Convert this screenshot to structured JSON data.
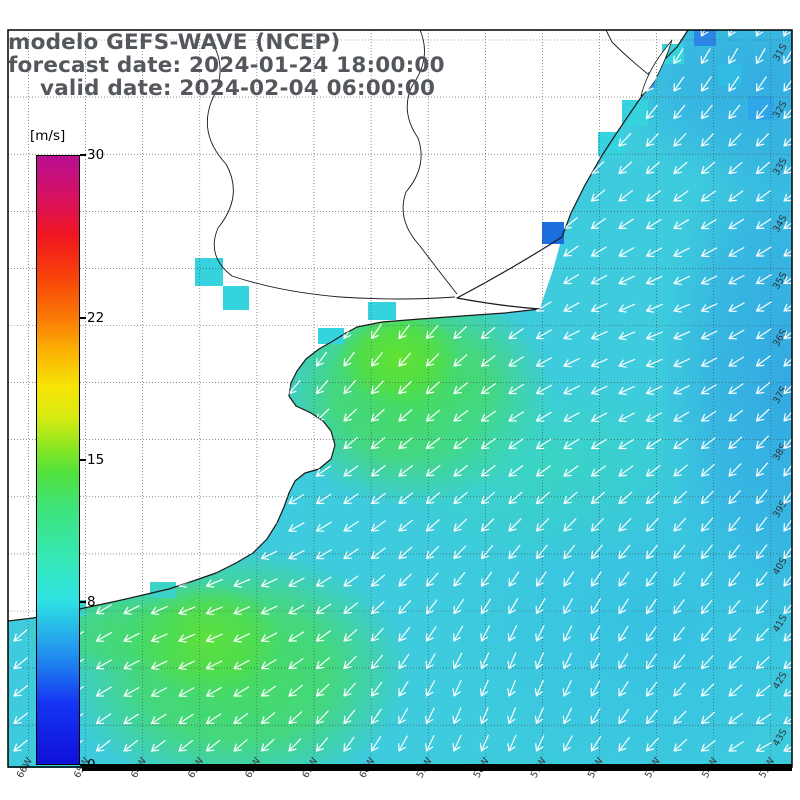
{
  "header": {
    "model_line": "modelo GEFS-WAVE (NCEP)",
    "forecast_line": "forecast date: 2024-01-24 18:00:00",
    "valid_line": "valid date: 2024-02-04 06:00:00",
    "text_color": "#54585c"
  },
  "colorbar": {
    "unit_label": "[m/s]",
    "min": 0,
    "max": 30,
    "tick_values": [
      30,
      22,
      15,
      8,
      0
    ],
    "gradient_stops": [
      [
        0.0,
        "#1010d8"
      ],
      [
        0.1,
        "#1535f2"
      ],
      [
        0.16,
        "#1e7bf0"
      ],
      [
        0.22,
        "#27b6ea"
      ],
      [
        0.27,
        "#2fe3e3"
      ],
      [
        0.34,
        "#35e8b4"
      ],
      [
        0.42,
        "#3ee37c"
      ],
      [
        0.48,
        "#52e23c"
      ],
      [
        0.52,
        "#8ae621"
      ],
      [
        0.57,
        "#d6ea12"
      ],
      [
        0.62,
        "#f7e504"
      ],
      [
        0.68,
        "#fbb103"
      ],
      [
        0.73,
        "#fb7d06"
      ],
      [
        0.8,
        "#f8430a"
      ],
      [
        0.87,
        "#ef1620"
      ],
      [
        0.93,
        "#d81060"
      ],
      [
        1.0,
        "#b80f92"
      ]
    ]
  },
  "map": {
    "ocean_color": "#3dcbdd",
    "land_color": "#ffffff",
    "arrow_color": "#ffffff",
    "wind_direction": "southwest",
    "grid_color": "#4a4a4a",
    "x_tick_labels": [
      "66W",
      "65W",
      "64W",
      "63W",
      "62W",
      "61W",
      "60W",
      "59W",
      "58W",
      "57W",
      "56W",
      "55W",
      "54W",
      "53W"
    ],
    "y_tick_labels": [
      "31S",
      "32S",
      "33S",
      "34S",
      "35S",
      "36S",
      "37S",
      "38S",
      "39S",
      "40S",
      "41S",
      "42S",
      "43S"
    ]
  }
}
